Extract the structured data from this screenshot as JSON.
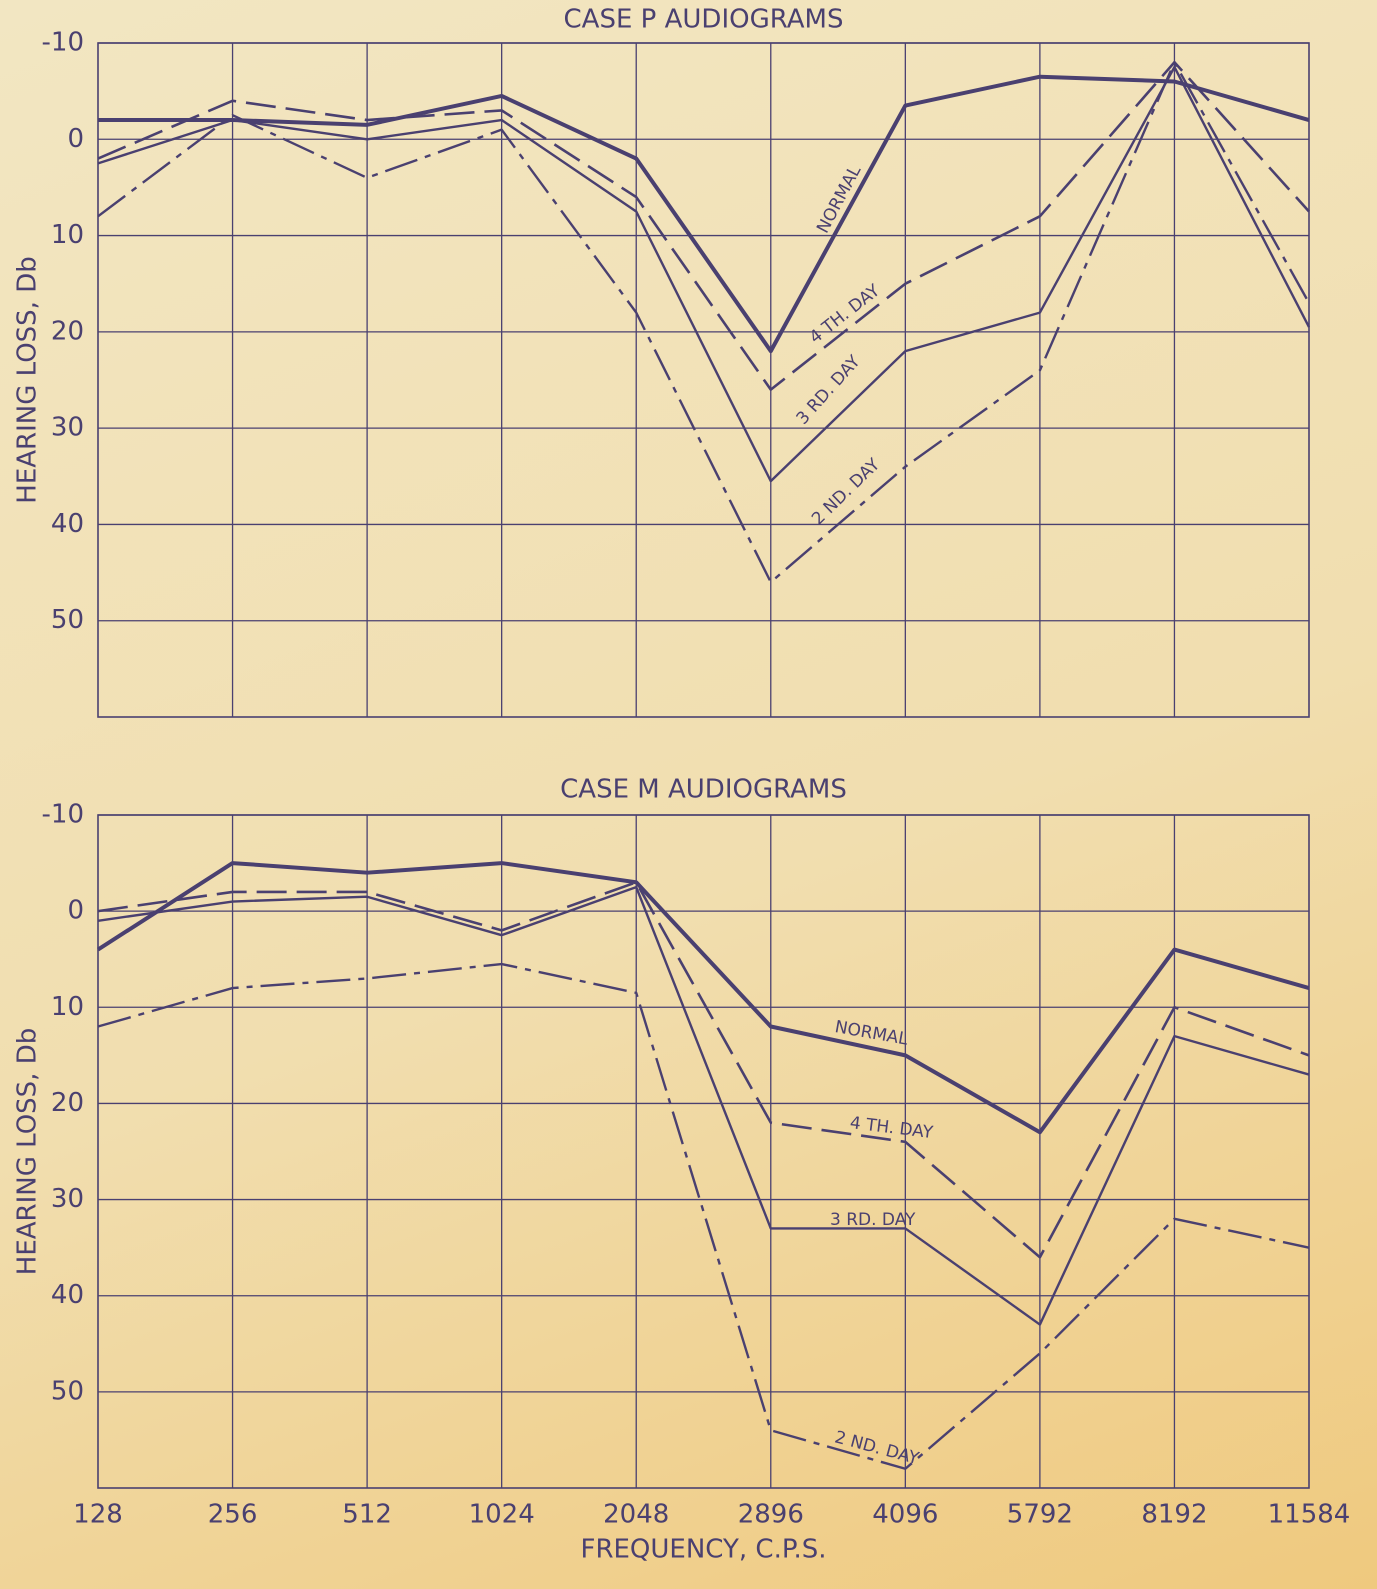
{
  "chart_data": [
    {
      "type": "line",
      "title": "CASE P AUDIOGRAMS",
      "y_label": "HEARING LOSS, Db",
      "ylim": [
        -10,
        60
      ],
      "yticks": [
        -10,
        0,
        10,
        20,
        30,
        40,
        50
      ],
      "y_inverted": true,
      "grid": true,
      "series": [
        {
          "name": "NORMAL",
          "color": "#4a4070",
          "dash": "solid",
          "values": [
            -2,
            -2,
            -1.5,
            -4.5,
            2,
            22,
            -3.5,
            -6.5,
            -6,
            -2
          ]
        },
        {
          "name": "4 TH. DAY",
          "color": "#4a4070",
          "dash": "dashed",
          "values": [
            2,
            -4,
            -2,
            -3,
            6,
            26,
            15,
            8,
            -8,
            7.5
          ]
        },
        {
          "name": "3 RD. DAY",
          "color": "#4a4070",
          "dash": "thin",
          "values": [
            2.5,
            -2,
            0,
            -2,
            7.5,
            35.5,
            22,
            18,
            -7.5,
            19.5
          ]
        },
        {
          "name": "2 ND. DAY",
          "color": "#4a4070",
          "dash": "dashdot",
          "values": [
            8,
            -2.5,
            4,
            -1,
            18,
            46,
            34,
            24,
            -8,
            17
          ]
        }
      ]
    },
    {
      "type": "line",
      "title": "CASE M AUDIOGRAMS",
      "y_label": "HEARING LOSS, Db",
      "x_label": "FREQUENCY, C.P.S.",
      "categories": [
        "128",
        "256",
        "512",
        "1024",
        "2048",
        "2896",
        "4096",
        "5792",
        "8192",
        "11584"
      ],
      "ylim": [
        -10,
        60
      ],
      "yticks": [
        -10,
        0,
        10,
        20,
        30,
        40,
        50
      ],
      "y_inverted": true,
      "grid": true,
      "series": [
        {
          "name": "NORMAL",
          "color": "#4a4070",
          "dash": "solid",
          "values": [
            4,
            -5,
            -4,
            -5,
            -3,
            12,
            15,
            23,
            4,
            8
          ]
        },
        {
          "name": "4 TH. DAY",
          "color": "#4a4070",
          "dash": "dashed",
          "values": [
            0,
            -2,
            -2,
            2,
            -3,
            22,
            24,
            36,
            10,
            15
          ]
        },
        {
          "name": "3 RD. DAY",
          "color": "#4a4070",
          "dash": "thin",
          "values": [
            1,
            -1,
            -1.5,
            2.5,
            -2.5,
            33,
            33,
            43,
            13,
            17
          ]
        },
        {
          "name": "2 ND. DAY",
          "color": "#4a4070",
          "dash": "dashdot",
          "values": [
            12,
            8,
            7,
            5.5,
            8.5,
            54,
            58,
            46,
            32,
            35
          ]
        }
      ]
    }
  ]
}
